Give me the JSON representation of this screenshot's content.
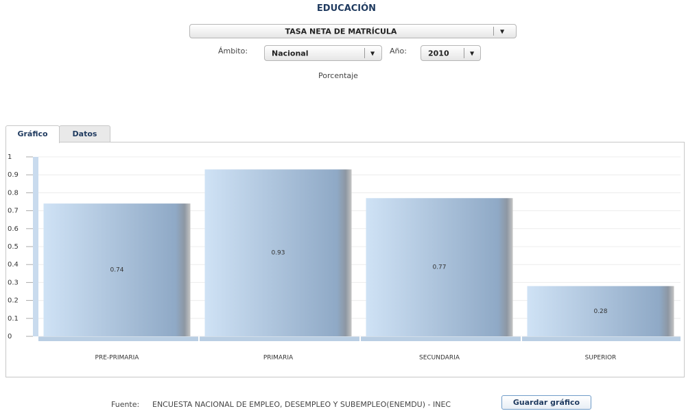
{
  "title": "EDUCACIÓN",
  "indicator_select": "TASA NETA DE MATRÍCULA",
  "ambito_label": "Ámbito:",
  "ambito_select": "Nacional",
  "anio_label": "Año:",
  "anio_select": "2010",
  "unit": "Porcentaje",
  "tabs": [
    "Gráfico",
    "Datos"
  ],
  "chart_data": {
    "type": "bar",
    "categories": [
      "PRE-PRIMARIA",
      "PRIMARIA",
      "SECUNDARIA",
      "SUPERIOR"
    ],
    "values": [
      0.74,
      0.93,
      0.77,
      0.28
    ],
    "color": "#8fa9c6",
    "ylim": [
      0,
      1
    ],
    "yticks": [
      0,
      0.1,
      0.2,
      0.3,
      0.4,
      0.5,
      0.6,
      0.7,
      0.8,
      0.9,
      1
    ],
    "grid": true
  },
  "footer": {
    "source_label": "Fuente:",
    "source": "ENCUESTA NACIONAL DE EMPLEO, DESEMPLEO Y SUBEMPLEO(ENEMDU) - INEC",
    "button": "Guardar gráfico"
  }
}
